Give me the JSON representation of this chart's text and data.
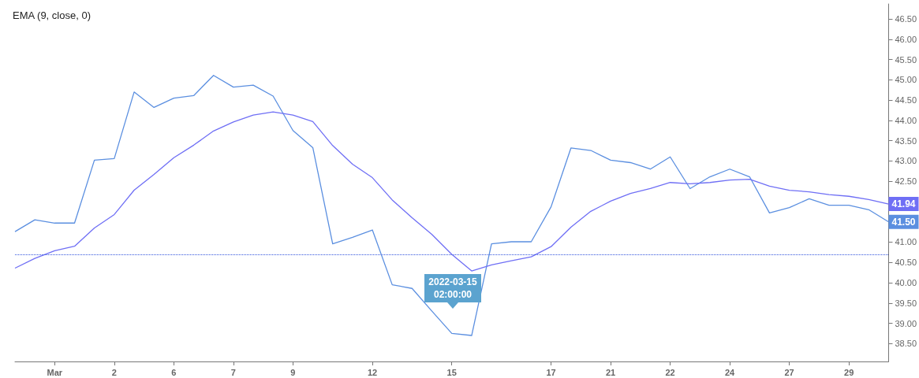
{
  "chart_data": {
    "type": "line",
    "title": "EMA (9, close, 0)",
    "categories": [
      null,
      null,
      "Mar",
      null,
      null,
      "2",
      null,
      null,
      "6",
      null,
      null,
      "7",
      null,
      null,
      "9",
      null,
      null,
      null,
      "12",
      null,
      null,
      null,
      "15",
      null,
      null,
      null,
      null,
      "17",
      null,
      null,
      "21",
      null,
      null,
      "22",
      null,
      null,
      "24",
      null,
      null,
      "27",
      null,
      null,
      "29",
      null,
      null
    ],
    "series": [
      {
        "color": "#5b8fe0",
        "values": [
          41.26,
          41.55,
          41.47,
          41.47,
          43.02,
          43.06,
          44.7,
          44.32,
          44.55,
          44.61,
          45.11,
          44.82,
          44.87,
          44.6,
          43.75,
          43.33,
          40.96,
          41.12,
          41.3,
          39.95,
          39.86,
          39.3,
          38.75,
          38.7,
          40.96,
          41.01,
          41.01,
          41.87,
          43.32,
          43.26,
          43.02,
          42.96,
          42.8,
          43.1,
          42.32,
          42.61,
          42.8,
          42.61,
          41.72,
          41.85,
          42.07,
          41.91,
          41.91,
          41.8,
          41.5
        ],
        "value_labels": [
          null,
          null,
          null,
          null,
          null,
          null,
          null,
          null,
          null,
          null,
          null,
          null,
          null,
          null,
          null,
          null,
          null,
          null,
          null,
          null,
          null,
          null,
          null,
          null,
          null,
          null,
          null,
          null,
          null,
          null,
          null,
          null,
          null,
          null,
          null,
          null,
          null,
          null,
          null,
          null,
          null,
          null,
          null,
          null,
          "41.50"
        ]
      },
      {
        "color": "#6f6ff5",
        "values": [
          40.36,
          40.6,
          40.79,
          40.9,
          41.35,
          41.68,
          42.28,
          42.67,
          43.08,
          43.39,
          43.74,
          43.96,
          44.13,
          44.21,
          44.13,
          43.97,
          43.38,
          42.92,
          42.59,
          42.04,
          41.6,
          41.19,
          40.7,
          40.29,
          40.44,
          40.54,
          40.64,
          40.89,
          41.37,
          41.76,
          42.01,
          42.2,
          42.32,
          42.47,
          42.44,
          42.47,
          42.53,
          42.55,
          42.38,
          42.28,
          42.24,
          42.17,
          42.13,
          42.05,
          41.94
        ],
        "value_labels": [
          null,
          null,
          null,
          null,
          null,
          null,
          null,
          null,
          null,
          null,
          null,
          null,
          null,
          null,
          null,
          null,
          null,
          null,
          null,
          null,
          null,
          null,
          null,
          null,
          null,
          null,
          null,
          null,
          null,
          null,
          null,
          null,
          null,
          null,
          null,
          null,
          null,
          null,
          null,
          null,
          null,
          null,
          null,
          null,
          "41.94"
        ]
      }
    ],
    "ylim": [
      38.06,
      46.87
    ],
    "yticks": [
      {
        "value": 38.5,
        "label": "38.50"
      },
      {
        "value": 39,
        "label": "39.00"
      },
      {
        "value": 39.5,
        "label": "39.50"
      },
      {
        "value": 40,
        "label": "40.00"
      },
      {
        "value": 40.5,
        "label": "40.50"
      },
      {
        "value": 41,
        "label": "41.00"
      },
      {
        "value": 41.5,
        "label": null
      },
      {
        "value": 42,
        "label": null
      },
      {
        "value": 42.5,
        "label": "42.50"
      },
      {
        "value": 43,
        "label": "43.00"
      },
      {
        "value": 43.5,
        "label": "43.50"
      },
      {
        "value": 44,
        "label": "44.00"
      },
      {
        "value": 44.5,
        "label": "44.50"
      },
      {
        "value": 45,
        "label": "45.00"
      },
      {
        "value": 45.5,
        "label": "45.50"
      },
      {
        "value": 46,
        "label": "46.00"
      },
      {
        "value": 46.5,
        "label": "46.50"
      }
    ],
    "ref_lines": [
      {
        "axis": "y",
        "value": 40.7,
        "color": "#3355dd",
        "line_style": "dotted"
      }
    ],
    "annotations": [
      "2022-03-15\n02:00:00"
    ],
    "grid": false,
    "marker": "none",
    "line_style": "solid"
  }
}
